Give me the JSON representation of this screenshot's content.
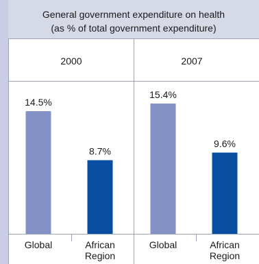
{
  "chart_data": {
    "type": "bar",
    "title": "General government expenditure on health",
    "subtitle": "(as % of total government expenditure)",
    "groups": [
      "2000",
      "2007"
    ],
    "categories": [
      "Global",
      "African Region"
    ],
    "category_lines": [
      [
        "Global"
      ],
      [
        "African",
        "Region"
      ]
    ],
    "series": [
      {
        "group": "2000",
        "values": [
          14.5,
          8.7
        ],
        "labels": [
          "14.5%",
          "8.7%"
        ]
      },
      {
        "group": "2007",
        "values": [
          15.4,
          9.6
        ],
        "labels": [
          "15.4%",
          "9.6%"
        ]
      }
    ],
    "unit": "%",
    "ylim": [
      0,
      20
    ],
    "colors": {
      "Global": "#8592c8",
      "African Region": "#0a4ea2"
    },
    "grid": false,
    "legend": "none"
  }
}
